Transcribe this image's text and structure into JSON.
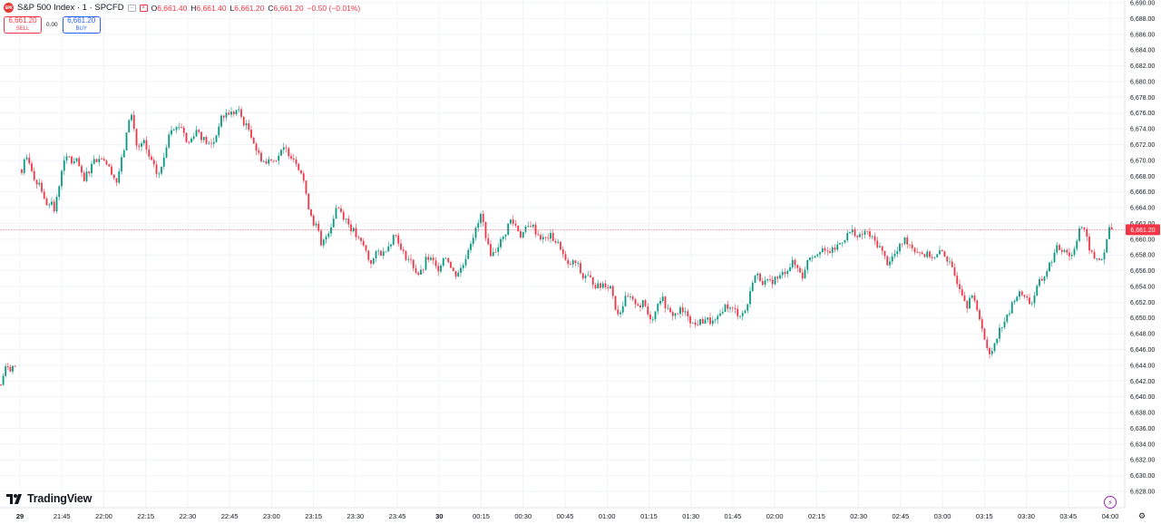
{
  "legend": {
    "symbol_icon": "SPX",
    "title": "S&P 500 Index · 1 · SPCFD",
    "indicator_icons": [
      "minus-icon",
      "close-icon"
    ],
    "open_label": "O",
    "open": "6,661.40",
    "high_label": "H",
    "high": "6,661.40",
    "low_label": "L",
    "low": "6,661.20",
    "close_label": "C",
    "close": "6,661.20",
    "change": "−0.50 (−0.01%)"
  },
  "trade": {
    "sell_price": "6,661.20",
    "sell_label": "SELL",
    "spread": "0.00",
    "buy_price": "6,661.20",
    "buy_label": "BUY"
  },
  "logo": {
    "text": "TradingView"
  },
  "colors": {
    "up": "#089981",
    "down": "#f23645",
    "grid": "#f0f3fa",
    "axis_text": "#131722"
  },
  "chart_data": {
    "type": "candlestick",
    "title": "",
    "price_axis": {
      "min": 6628,
      "max": 6690,
      "tick_step": 2,
      "labels": [
        "6,690.00",
        "6,688.00",
        "6,686.00",
        "6,684.00",
        "6,682.00",
        "6,680.00",
        "6,678.00",
        "6,676.00",
        "6,674.00",
        "6,672.00",
        "6,670.00",
        "6,668.00",
        "6,666.00",
        "6,664.00",
        "6,662.00",
        "6,660.00",
        "6,658.00",
        "6,656.00",
        "6,654.00",
        "6,652.00",
        "6,650.00",
        "6,648.00",
        "6,646.00",
        "6,644.00",
        "6,642.00",
        "6,640.00",
        "6,638.00",
        "6,636.00",
        "6,634.00",
        "6,632.00",
        "6,630.00",
        "6,628.00"
      ]
    },
    "time_axis": {
      "labels": [
        "29",
        "21:45",
        "22:00",
        "22:15",
        "22:30",
        "22:45",
        "23:00",
        "23:15",
        "23:30",
        "23:45",
        "30",
        "00:15",
        "00:30",
        "00:45",
        "01:00",
        "01:15",
        "01:30",
        "01:45",
        "02:00",
        "02:15",
        "02:30",
        "02:45",
        "03:00",
        "03:15",
        "03:30",
        "03:45",
        "04:00"
      ],
      "bold": [
        "29",
        "30"
      ]
    },
    "last_price": {
      "value": 6661.2,
      "label": "6,661.20"
    },
    "grid": true,
    "path_points": [
      [
        0,
        6641
      ],
      [
        3,
        6642.5
      ],
      [
        6,
        6643.5
      ],
      [
        9,
        6644
      ],
      [
        12,
        6643.5
      ],
      [
        16,
        6644
      ],
      [
        19,
        6643.5
      ],
      [
        24,
        6668
      ],
      [
        28,
        6670.5
      ],
      [
        32,
        6670
      ],
      [
        36,
        6668.5
      ],
      [
        40,
        6667
      ],
      [
        44,
        6667.5
      ],
      [
        48,
        6665
      ],
      [
        52,
        6664.5
      ],
      [
        56,
        6665
      ],
      [
        60,
        6663.5
      ],
      [
        64,
        6666
      ],
      [
        68,
        6669
      ],
      [
        72,
        6670
      ],
      [
        76,
        6670.5
      ],
      [
        80,
        6669.5
      ],
      [
        84,
        6670
      ],
      [
        88,
        6669
      ],
      [
        92,
        6667
      ],
      [
        96,
        6668.5
      ],
      [
        100,
        6669
      ],
      [
        104,
        6670.5
      ],
      [
        108,
        6670
      ],
      [
        112,
        6670.5
      ],
      [
        116,
        6670
      ],
      [
        120,
        6669
      ],
      [
        124,
        6668.5
      ],
      [
        128,
        6667
      ],
      [
        132,
        6669
      ],
      [
        136,
        6671
      ],
      [
        140,
        6673.5
      ],
      [
        143,
        6676
      ],
      [
        146,
        6675.5
      ],
      [
        150,
        6672
      ],
      [
        154,
        6671.5
      ],
      [
        158,
        6672.5
      ],
      [
        162,
        6671
      ],
      [
        166,
        6670
      ],
      [
        170,
        6669
      ],
      [
        174,
        6668
      ],
      [
        178,
        6669
      ],
      [
        182,
        6671
      ],
      [
        186,
        6673.5
      ],
      [
        190,
        6674.5
      ],
      [
        194,
        6674
      ],
      [
        198,
        6674.5
      ],
      [
        202,
        6674
      ],
      [
        206,
        6672
      ],
      [
        210,
        6672.5
      ],
      [
        214,
        6673.5
      ],
      [
        218,
        6674
      ],
      [
        222,
        6673
      ],
      [
        226,
        6672.5
      ],
      [
        230,
        6672
      ],
      [
        234,
        6672
      ],
      [
        238,
        6673
      ],
      [
        242,
        6675
      ],
      [
        246,
        6675.5
      ],
      [
        250,
        6676
      ],
      [
        254,
        6676
      ],
      [
        258,
        6676
      ],
      [
        262,
        6676.5
      ],
      [
        266,
        6675.5
      ],
      [
        270,
        6674.5
      ],
      [
        274,
        6674
      ],
      [
        278,
        6673
      ],
      [
        282,
        6671.5
      ],
      [
        286,
        6670.5
      ],
      [
        290,
        6670
      ],
      [
        294,
        6669.5
      ],
      [
        298,
        6670.5
      ],
      [
        302,
        6670
      ],
      [
        306,
        6670.5
      ],
      [
        310,
        6671
      ],
      [
        314,
        6671.5
      ],
      [
        318,
        6671
      ],
      [
        322,
        6670.5
      ],
      [
        326,
        6670
      ],
      [
        330,
        6669
      ],
      [
        334,
        6668
      ],
      [
        338,
        6665
      ],
      [
        342,
        6663.5
      ],
      [
        346,
        6662
      ],
      [
        350,
        6661.5
      ],
      [
        354,
        6659
      ],
      [
        358,
        6660
      ],
      [
        362,
        6661
      ],
      [
        366,
        6662
      ],
      [
        370,
        6664
      ],
      [
        374,
        6664
      ],
      [
        378,
        6663
      ],
      [
        382,
        6662.5
      ],
      [
        386,
        6661.5
      ],
      [
        390,
        6661
      ],
      [
        394,
        6660
      ],
      [
        398,
        6659.5
      ],
      [
        402,
        6659
      ],
      [
        406,
        6657.5
      ],
      [
        410,
        6657
      ],
      [
        414,
        6658
      ],
      [
        418,
        6658.5
      ],
      [
        422,
        6658
      ],
      [
        426,
        6659
      ],
      [
        430,
        6659.5
      ],
      [
        434,
        6660.5
      ],
      [
        438,
        6660.5
      ],
      [
        442,
        6658.5
      ],
      [
        446,
        6658
      ],
      [
        450,
        6657.5
      ],
      [
        454,
        6657
      ],
      [
        458,
        6656
      ],
      [
        462,
        6655.5
      ],
      [
        466,
        6656
      ],
      [
        470,
        6657.5
      ],
      [
        474,
        6657.5
      ],
      [
        478,
        6657
      ],
      [
        482,
        6656
      ],
      [
        486,
        6657
      ],
      [
        490,
        6658
      ],
      [
        494,
        6657.5
      ],
      [
        498,
        6656
      ],
      [
        502,
        6655.5
      ],
      [
        506,
        6656
      ],
      [
        510,
        6656.5
      ],
      [
        514,
        6658
      ],
      [
        518,
        6659.5
      ],
      [
        522,
        6660.5
      ],
      [
        526,
        6661.5
      ],
      [
        530,
        6663
      ],
      [
        534,
        6661.5
      ],
      [
        538,
        6659
      ],
      [
        542,
        6658
      ],
      [
        546,
        6658.5
      ],
      [
        550,
        6659.5
      ],
      [
        554,
        6660
      ],
      [
        558,
        6661
      ],
      [
        562,
        6662.5
      ],
      [
        566,
        6662
      ],
      [
        570,
        6661.5
      ],
      [
        574,
        6660.5
      ],
      [
        578,
        6661
      ],
      [
        582,
        6661.5
      ],
      [
        586,
        6662
      ],
      [
        590,
        6661
      ],
      [
        594,
        6660.5
      ],
      [
        598,
        6660
      ],
      [
        602,
        6660
      ],
      [
        606,
        6660.5
      ],
      [
        610,
        6660
      ],
      [
        614,
        6659.5
      ],
      [
        618,
        6659
      ],
      [
        622,
        6657.5
      ],
      [
        626,
        6656.5
      ],
      [
        630,
        6657
      ],
      [
        634,
        6657
      ],
      [
        638,
        6656.5
      ],
      [
        642,
        6655
      ],
      [
        646,
        6655.5
      ],
      [
        650,
        6655
      ],
      [
        654,
        6654.5
      ],
      [
        658,
        6654
      ],
      [
        662,
        6654
      ],
      [
        666,
        6654.5
      ],
      [
        670,
        6654
      ],
      [
        674,
        6654
      ],
      [
        678,
        6651.5
      ],
      [
        682,
        6650.5
      ],
      [
        686,
        6651.5
      ],
      [
        690,
        6652.5
      ],
      [
        694,
        6652.5
      ],
      [
        698,
        6652
      ],
      [
        702,
        6652
      ],
      [
        706,
        6651.5
      ],
      [
        710,
        6652
      ],
      [
        714,
        6650.5
      ],
      [
        718,
        6650
      ],
      [
        722,
        6650.5
      ],
      [
        726,
        6652.5
      ],
      [
        730,
        6652.5
      ],
      [
        734,
        6651.5
      ],
      [
        738,
        6650.5
      ],
      [
        742,
        6650.5
      ],
      [
        746,
        6650.5
      ],
      [
        750,
        6651
      ],
      [
        754,
        6650.5
      ],
      [
        758,
        6650.5
      ],
      [
        762,
        6649.5
      ],
      [
        766,
        6649
      ],
      [
        770,
        6649.5
      ],
      [
        774,
        6649.5
      ],
      [
        778,
        6650
      ],
      [
        782,
        6649.5
      ],
      [
        786,
        6649.5
      ],
      [
        790,
        6649.5
      ],
      [
        794,
        6650.5
      ],
      [
        798,
        6651.5
      ],
      [
        802,
        6651.5
      ],
      [
        806,
        6651
      ],
      [
        810,
        6651
      ],
      [
        814,
        6650.5
      ],
      [
        818,
        6650.5
      ],
      [
        822,
        6651
      ],
      [
        826,
        6652.5
      ],
      [
        830,
        6655
      ],
      [
        834,
        6655.5
      ],
      [
        838,
        6655
      ],
      [
        842,
        6654.5
      ],
      [
        846,
        6654.5
      ],
      [
        850,
        6654.5
      ],
      [
        854,
        6655
      ],
      [
        858,
        6655
      ],
      [
        862,
        6655.5
      ],
      [
        866,
        6656
      ],
      [
        870,
        6656.5
      ],
      [
        874,
        6657
      ],
      [
        878,
        6656.5
      ],
      [
        882,
        6656
      ],
      [
        886,
        6655
      ],
      [
        890,
        6657.5
      ],
      [
        894,
        6658
      ],
      [
        898,
        6658
      ],
      [
        902,
        6658.5
      ],
      [
        906,
        6659
      ],
      [
        910,
        6658
      ],
      [
        914,
        6658.5
      ],
      [
        918,
        6658.5
      ],
      [
        922,
        6659
      ],
      [
        926,
        6659.5
      ],
      [
        930,
        6660
      ],
      [
        934,
        6660.5
      ],
      [
        938,
        6661
      ],
      [
        942,
        6661
      ],
      [
        946,
        6660
      ],
      [
        950,
        6660.5
      ],
      [
        954,
        6661
      ],
      [
        958,
        6660.5
      ],
      [
        962,
        6660
      ],
      [
        966,
        6659.5
      ],
      [
        970,
        6659
      ],
      [
        974,
        6658
      ],
      [
        978,
        6657
      ],
      [
        982,
        6657.5
      ],
      [
        986,
        6658
      ],
      [
        990,
        6658.5
      ],
      [
        994,
        6659.5
      ],
      [
        998,
        6660
      ],
      [
        1002,
        6659.5
      ],
      [
        1006,
        6659
      ],
      [
        1010,
        6658.5
      ],
      [
        1014,
        6658.5
      ],
      [
        1018,
        6658
      ],
      [
        1022,
        6658
      ],
      [
        1026,
        6658
      ],
      [
        1030,
        6657.5
      ],
      [
        1034,
        6658
      ],
      [
        1038,
        6658.5
      ],
      [
        1042,
        6658
      ],
      [
        1046,
        6657
      ],
      [
        1050,
        6656
      ],
      [
        1054,
        6655
      ],
      [
        1058,
        6654
      ],
      [
        1062,
        6653
      ],
      [
        1066,
        6651.5
      ],
      [
        1070,
        6653.5
      ],
      [
        1074,
        6652
      ],
      [
        1078,
        6650.5
      ],
      [
        1082,
        6649.5
      ],
      [
        1086,
        6647
      ],
      [
        1090,
        6645
      ],
      [
        1094,
        6646
      ],
      [
        1098,
        6647.5
      ],
      [
        1102,
        6648.5
      ],
      [
        1106,
        6649.5
      ],
      [
        1110,
        6650
      ],
      [
        1114,
        6651
      ],
      [
        1118,
        6652.5
      ],
      [
        1122,
        6653
      ],
      [
        1126,
        6653
      ],
      [
        1130,
        6653
      ],
      [
        1134,
        6652
      ],
      [
        1138,
        6652
      ],
      [
        1142,
        6653.5
      ],
      [
        1146,
        6654.5
      ],
      [
        1150,
        6655
      ],
      [
        1154,
        6656
      ],
      [
        1158,
        6657
      ],
      [
        1162,
        6658
      ],
      [
        1166,
        6659
      ],
      [
        1170,
        6658.5
      ],
      [
        1174,
        6659
      ],
      [
        1178,
        6658
      ],
      [
        1182,
        6658
      ],
      [
        1186,
        6659.5
      ],
      [
        1190,
        6661.5
      ],
      [
        1194,
        6661.5
      ],
      [
        1198,
        6660
      ],
      [
        1202,
        6658.5
      ],
      [
        1206,
        6657.5
      ],
      [
        1210,
        6657.5
      ],
      [
        1214,
        6657.5
      ],
      [
        1218,
        6658
      ],
      [
        1222,
        6661.5
      ],
      [
        1226,
        6661.2
      ]
    ]
  }
}
